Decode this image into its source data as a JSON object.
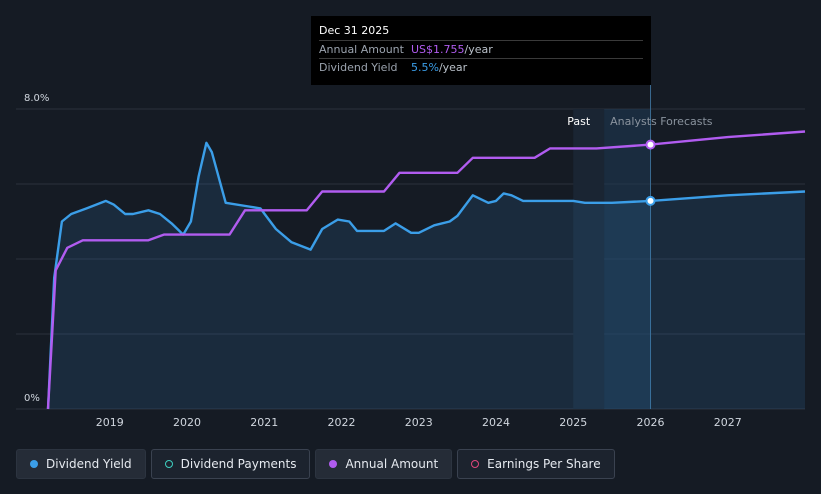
{
  "tooltip": {
    "date": "Dec 31 2025",
    "annual_amount_label": "Annual Amount",
    "annual_amount_value": "US$1.755",
    "annual_amount_unit": "/year",
    "yield_label": "Dividend Yield",
    "yield_value": "5.5%",
    "yield_unit": "/year"
  },
  "legend": [
    {
      "label": "Dividend Yield",
      "color": "#3b9ee8",
      "style": "filled"
    },
    {
      "label": "Dividend Payments",
      "color": "#3ecfc0",
      "style": "hollow"
    },
    {
      "label": "Annual Amount",
      "color": "#b15cf0",
      "style": "filled"
    },
    {
      "label": "Earnings Per Share",
      "color": "#e0467c",
      "style": "hollow"
    }
  ],
  "colors": {
    "yield": "#3b9ee8",
    "annual": "#b15cf0",
    "grid": "#2a313c",
    "forecast_band": "#1f3a55"
  },
  "chart_data": {
    "type": "line",
    "y_tick_labels": [
      "0%",
      "8.0%"
    ],
    "ylim": [
      0,
      8.0
    ],
    "x_tick_labels": [
      "2019",
      "2020",
      "2021",
      "2022",
      "2023",
      "2024",
      "2025",
      "2026",
      "2027"
    ],
    "xlim": [
      2018.2,
      2028.0
    ],
    "region_labels": {
      "past": "Past",
      "forecast": "Analysts Forecasts"
    },
    "past_end": 2025.0,
    "forecast_start": 2026.0,
    "highlight_x": 2026.0,
    "grid": true,
    "series": [
      {
        "name": "Dividend Yield",
        "points": [
          [
            2018.2,
            0.0
          ],
          [
            2018.28,
            3.5
          ],
          [
            2018.38,
            5.0
          ],
          [
            2018.5,
            5.2
          ],
          [
            2018.7,
            5.35
          ],
          [
            2018.95,
            5.55
          ],
          [
            2019.05,
            5.45
          ],
          [
            2019.2,
            5.2
          ],
          [
            2019.3,
            5.2
          ],
          [
            2019.5,
            5.3
          ],
          [
            2019.65,
            5.2
          ],
          [
            2019.8,
            4.95
          ],
          [
            2019.95,
            4.65
          ],
          [
            2020.05,
            5.0
          ],
          [
            2020.15,
            6.2
          ],
          [
            2020.25,
            7.1
          ],
          [
            2020.32,
            6.85
          ],
          [
            2020.5,
            5.5
          ],
          [
            2020.8,
            5.4
          ],
          [
            2020.95,
            5.35
          ],
          [
            2021.15,
            4.8
          ],
          [
            2021.35,
            4.45
          ],
          [
            2021.6,
            4.25
          ],
          [
            2021.75,
            4.8
          ],
          [
            2021.95,
            5.05
          ],
          [
            2022.1,
            5.0
          ],
          [
            2022.2,
            4.75
          ],
          [
            2022.4,
            4.75
          ],
          [
            2022.55,
            4.75
          ],
          [
            2022.7,
            4.95
          ],
          [
            2022.9,
            4.7
          ],
          [
            2023.0,
            4.7
          ],
          [
            2023.2,
            4.9
          ],
          [
            2023.4,
            5.0
          ],
          [
            2023.5,
            5.15
          ],
          [
            2023.7,
            5.7
          ],
          [
            2023.9,
            5.5
          ],
          [
            2024.0,
            5.55
          ],
          [
            2024.1,
            5.75
          ],
          [
            2024.2,
            5.7
          ],
          [
            2024.35,
            5.55
          ],
          [
            2024.7,
            5.55
          ],
          [
            2025.0,
            5.55
          ],
          [
            2025.15,
            5.5
          ],
          [
            2025.5,
            5.5
          ],
          [
            2026.0,
            5.55
          ],
          [
            2027.0,
            5.7
          ],
          [
            2028.0,
            5.8
          ]
        ]
      },
      {
        "name": "Annual Amount",
        "points": [
          [
            2018.2,
            0.0
          ],
          [
            2018.3,
            3.7
          ],
          [
            2018.45,
            4.3
          ],
          [
            2018.65,
            4.5
          ],
          [
            2019.5,
            4.5
          ],
          [
            2019.7,
            4.65
          ],
          [
            2020.55,
            4.65
          ],
          [
            2020.75,
            5.3
          ],
          [
            2021.55,
            5.3
          ],
          [
            2021.75,
            5.8
          ],
          [
            2022.55,
            5.8
          ],
          [
            2022.75,
            6.3
          ],
          [
            2023.5,
            6.3
          ],
          [
            2023.7,
            6.7
          ],
          [
            2024.5,
            6.7
          ],
          [
            2024.7,
            6.95
          ],
          [
            2025.3,
            6.95
          ],
          [
            2026.0,
            7.05
          ],
          [
            2027.0,
            7.25
          ],
          [
            2028.0,
            7.4
          ]
        ]
      }
    ]
  }
}
